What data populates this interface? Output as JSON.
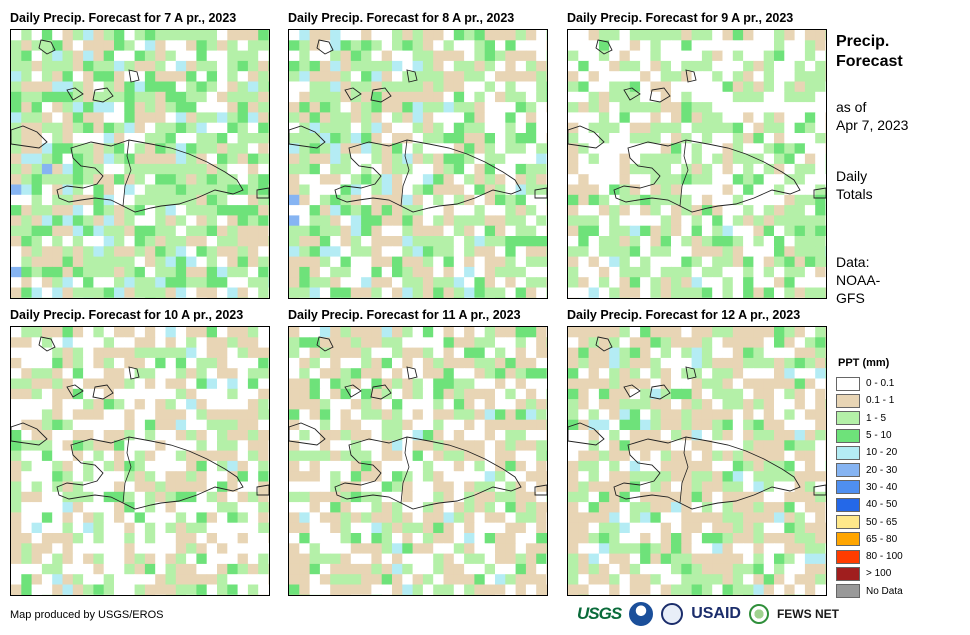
{
  "panels": [
    {
      "title": "Daily Precip. Forecast for 7 A pr., 2023",
      "day": 7
    },
    {
      "title": "Daily Precip. Forecast for 8 A pr., 2023",
      "day": 8
    },
    {
      "title": "Daily Precip. Forecast for 9 A pr., 2023",
      "day": 9
    },
    {
      "title": "Daily Precip. Forecast for 10 A pr., 2023",
      "day": 10
    },
    {
      "title": "Daily Precip. Forecast for 11 A pr., 2023",
      "day": 11
    },
    {
      "title": "Daily Precip. Forecast for 12 A pr., 2023",
      "day": 12
    }
  ],
  "side": {
    "title_line1": "Precip.",
    "title_line2": "Forecast",
    "asof_line1": "as of",
    "asof_line2": "Apr 7, 2023",
    "totals_line1": "Daily",
    "totals_line2": "Totals",
    "data_line1": "Data:",
    "data_line2": "NOAA-",
    "data_line3": "GFS"
  },
  "legend": {
    "title": "PPT (mm)",
    "items": [
      {
        "label": "0 - 0.1",
        "color": "#ffffff"
      },
      {
        "label": "0.1 - 1",
        "color": "#e8d5b5"
      },
      {
        "label": "1 - 5",
        "color": "#b4f0a8"
      },
      {
        "label": "5 - 10",
        "color": "#6ee27a"
      },
      {
        "label": "10 - 20",
        "color": "#b4ecf4"
      },
      {
        "label": "20 - 30",
        "color": "#86b4f2"
      },
      {
        "label": "30 - 40",
        "color": "#4f8ff0"
      },
      {
        "label": "40 - 50",
        "color": "#2468e8"
      },
      {
        "label": "50 - 65",
        "color": "#ffe88a"
      },
      {
        "label": "65 - 80",
        "color": "#ffa500"
      },
      {
        "label": "80 - 100",
        "color": "#ff3c00"
      },
      {
        "label": "> 100",
        "color": "#a01e1e"
      },
      {
        "label": "No Data",
        "color": "#999999"
      }
    ]
  },
  "footer": {
    "credit": "Map produced by USGS/EROS",
    "logo_usgs": "USGS",
    "logo_usaid": "USAID",
    "logo_fews": "FEWS NET"
  }
}
